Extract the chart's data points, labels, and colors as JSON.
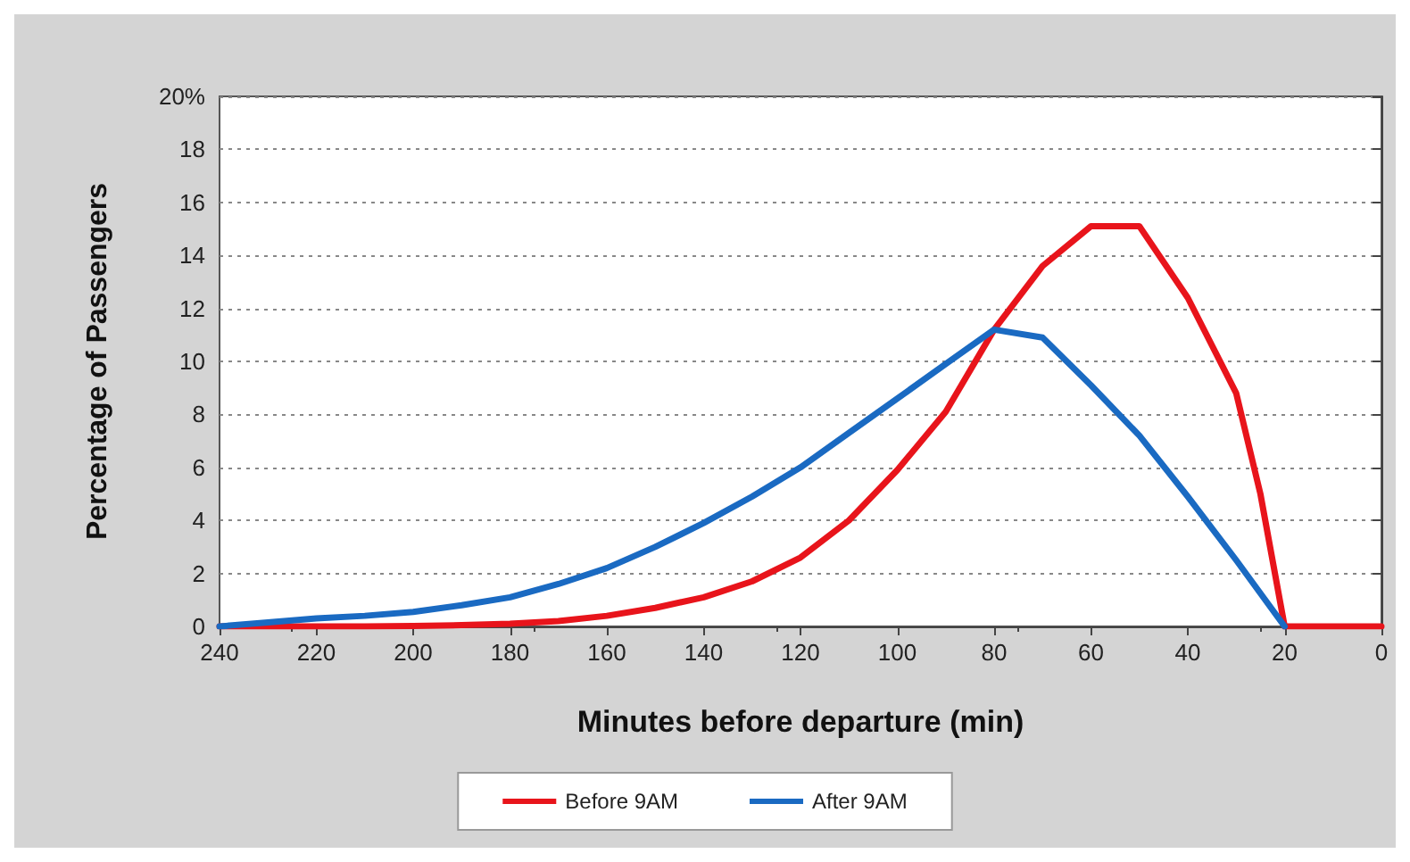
{
  "chart_data": {
    "type": "line",
    "xlabel": "Minutes before departure (min)",
    "ylabel": "Percentage of Passengers",
    "x": [
      240,
      230,
      220,
      210,
      200,
      190,
      180,
      170,
      160,
      150,
      140,
      130,
      120,
      110,
      100,
      90,
      80,
      70,
      60,
      50,
      40,
      30,
      25,
      20,
      10,
      0
    ],
    "series": [
      {
        "name": "Before 9AM",
        "color": "#e8141b",
        "values": [
          0,
          0,
          0,
          0,
          0.02,
          0.05,
          0.1,
          0.2,
          0.4,
          0.7,
          1.1,
          1.7,
          2.6,
          4.0,
          5.9,
          8.1,
          11.2,
          13.6,
          15.1,
          15.1,
          12.4,
          8.8,
          5.0,
          0,
          0,
          0
        ]
      },
      {
        "name": "After 9AM",
        "color": "#1a6ac2",
        "x": [
          240,
          230,
          220,
          210,
          200,
          190,
          180,
          170,
          160,
          150,
          140,
          130,
          120,
          110,
          100,
          90,
          80,
          70,
          60,
          50,
          40,
          30,
          20
        ],
        "values": [
          0,
          0.15,
          0.3,
          0.4,
          0.55,
          0.8,
          1.1,
          1.6,
          2.2,
          3.0,
          3.9,
          4.9,
          6.0,
          7.3,
          8.6,
          9.9,
          11.2,
          10.9,
          9.1,
          7.2,
          4.9,
          2.5,
          0
        ]
      }
    ],
    "xlim": [
      240,
      0
    ],
    "xticks": [
      240,
      220,
      200,
      180,
      160,
      140,
      120,
      100,
      80,
      60,
      40,
      20,
      0
    ],
    "ylim": [
      0,
      20
    ],
    "yticks": [
      0,
      2,
      4,
      6,
      8,
      10,
      12,
      14,
      16,
      18,
      {
        "value": 20,
        "label": "20%"
      }
    ],
    "grid": "y",
    "legend": "bottom",
    "marker": "none",
    "line_style": "solid"
  }
}
